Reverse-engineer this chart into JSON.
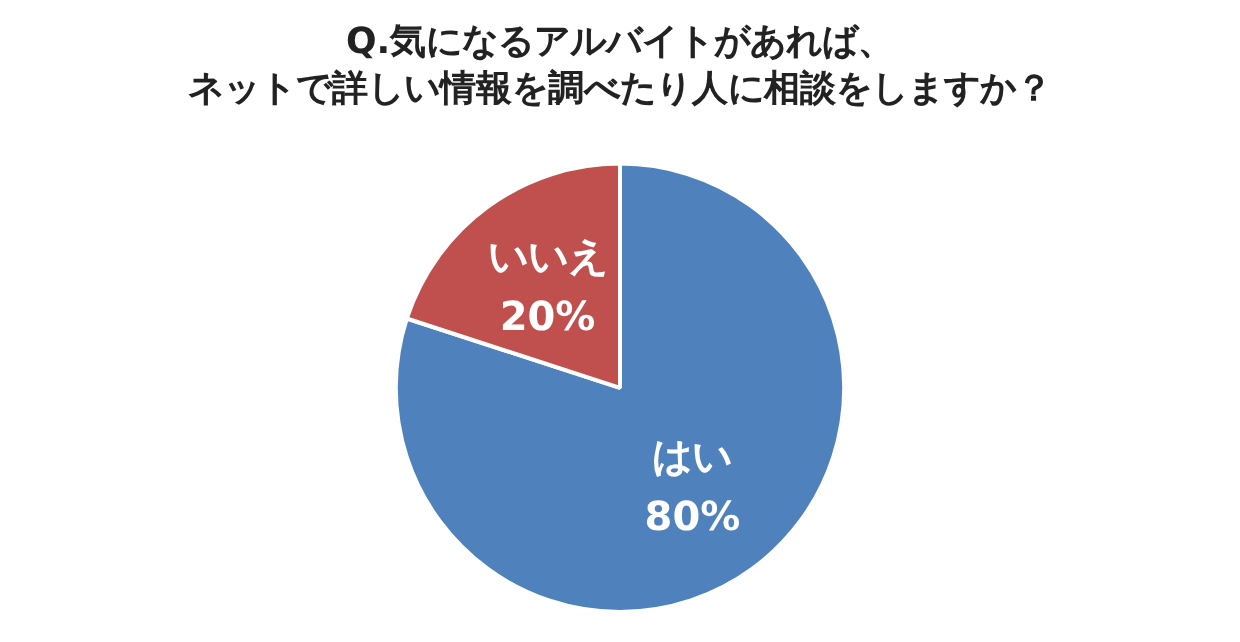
{
  "chart_data": {
    "type": "pie",
    "title": "Q.気になるアルバイトがあれば、ネットで詳しい情報を調べたり人に相談をしますか？",
    "categories": [
      "はい",
      "いいえ"
    ],
    "values": [
      80,
      20
    ],
    "colors": [
      "#4f81bd",
      "#c0504d"
    ],
    "value_labels": [
      "80%",
      "20%"
    ],
    "legend": false
  }
}
